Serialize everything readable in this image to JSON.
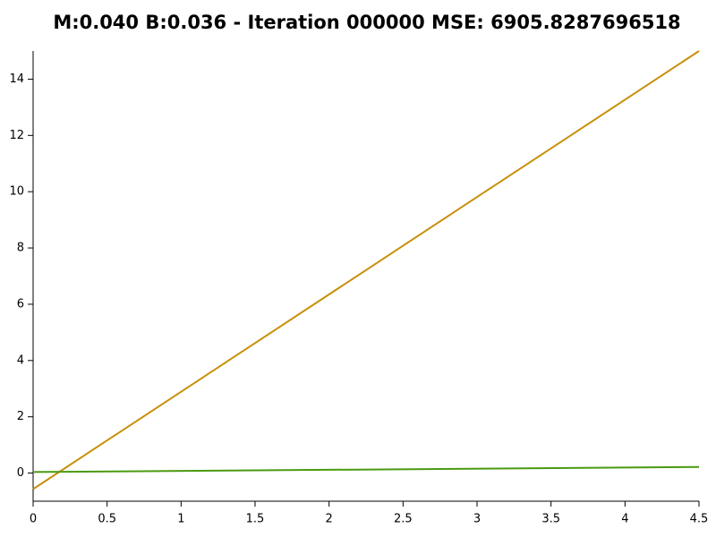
{
  "chart_data": {
    "type": "line",
    "title": "M:0.040 B:0.036 - Iteration 000000 MSE: 6905.8287696518",
    "x": [
      0,
      4.5
    ],
    "series": [
      {
        "color": "#c8900a",
        "values": [
          -0.57,
          15
        ]
      },
      {
        "color": "#4a9a10",
        "values": [
          0.036,
          0.216
        ]
      }
    ],
    "xlim": [
      0,
      4.5
    ],
    "ylim": [
      -1,
      15
    ],
    "xticks": [
      0,
      0.5,
      1,
      1.5,
      2,
      2.5,
      3,
      3.5,
      4,
      4.5
    ],
    "yticks": [
      0,
      2,
      4,
      6,
      8,
      10,
      12,
      14
    ]
  }
}
